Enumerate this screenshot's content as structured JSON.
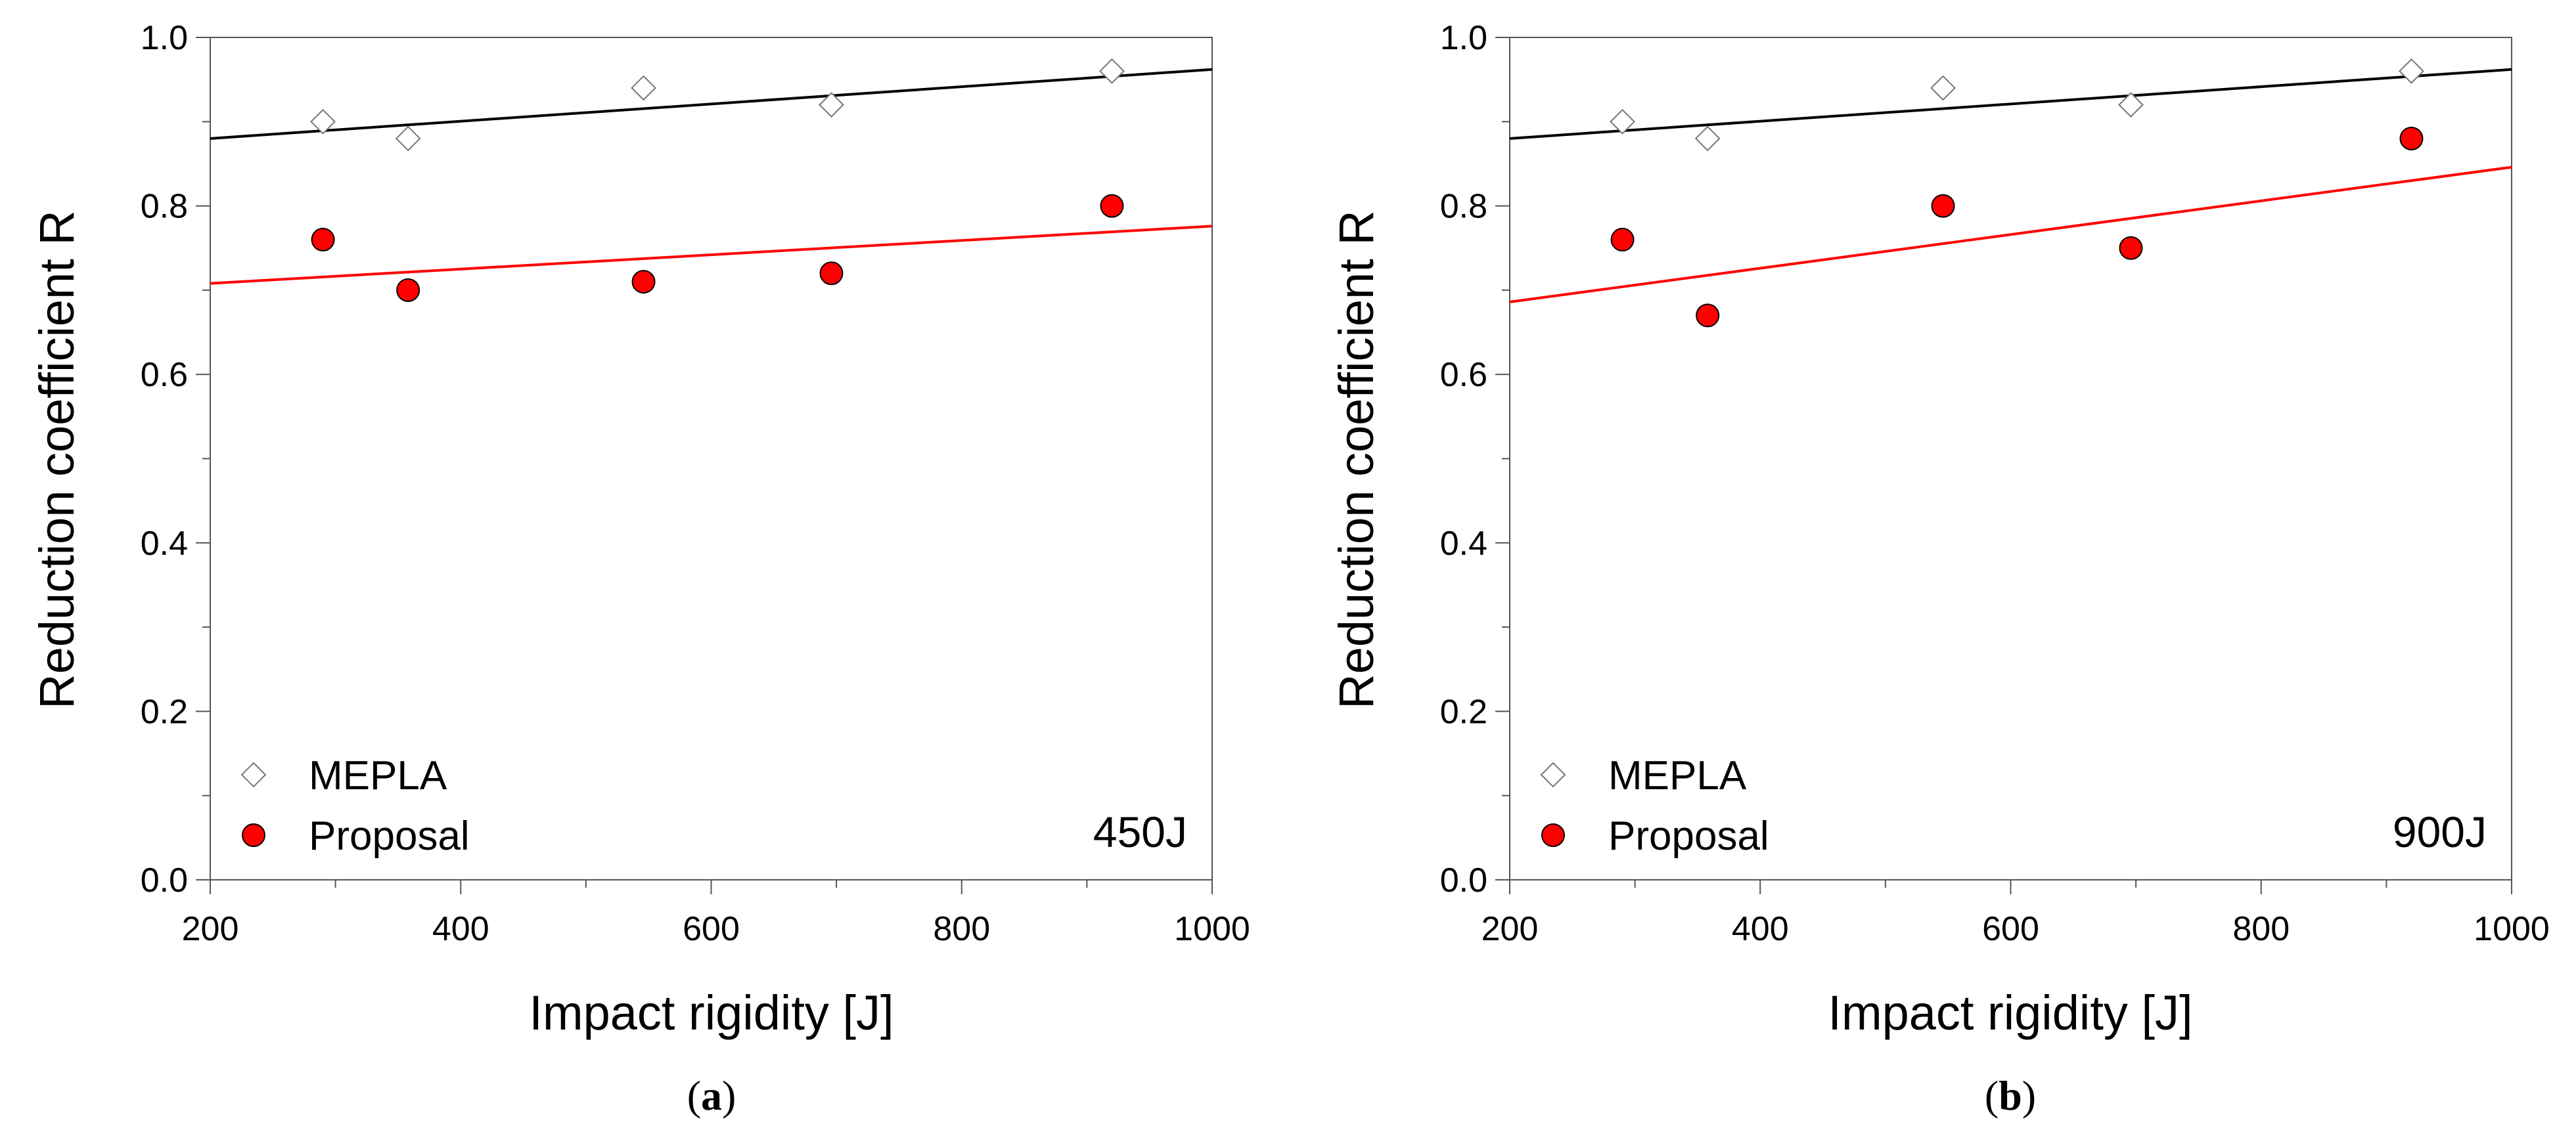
{
  "chart_data": [
    {
      "type": "scatter",
      "caption_letter": "a",
      "annotation": "450J",
      "xlabel": "Impact rigidity [J]",
      "ylabel": "Reduction coefficient R",
      "xlim": [
        200,
        1000
      ],
      "ylim": [
        0.0,
        1.0
      ],
      "xticks": [
        "200",
        "400",
        "600",
        "800",
        "1000"
      ],
      "yticks": [
        "0.0",
        "0.2",
        "0.4",
        "0.6",
        "0.8",
        "1.0"
      ],
      "legend_position": "bottom-left",
      "series": [
        {
          "name": "MEPLA",
          "marker": "diamond-open",
          "color": "#000000",
          "x": [
            290,
            358,
            546,
            696,
            920
          ],
          "y": [
            0.9,
            0.88,
            0.94,
            0.92,
            0.96
          ],
          "trendline": {
            "x": [
              200,
              1000
            ],
            "y": [
              0.88,
              0.962
            ]
          }
        },
        {
          "name": "Proposal",
          "marker": "circle-filled",
          "color": "#ff0000",
          "x": [
            290,
            358,
            546,
            696,
            920
          ],
          "y": [
            0.76,
            0.7,
            0.71,
            0.72,
            0.8
          ],
          "trendline": {
            "x": [
              200,
              1000
            ],
            "y": [
              0.708,
              0.776
            ]
          }
        }
      ]
    },
    {
      "type": "scatter",
      "caption_letter": "b",
      "annotation": "900J",
      "xlabel": "Impact rigidity [J]",
      "ylabel": "Reduction coefficient R",
      "xlim": [
        200,
        1000
      ],
      "ylim": [
        0.0,
        1.0
      ],
      "xticks": [
        "200",
        "400",
        "600",
        "800",
        "1000"
      ],
      "yticks": [
        "0.0",
        "0.2",
        "0.4",
        "0.6",
        "0.8",
        "1.0"
      ],
      "legend_position": "bottom-left",
      "series": [
        {
          "name": "MEPLA",
          "marker": "diamond-open",
          "color": "#000000",
          "x": [
            290,
            358,
            546,
            696,
            920
          ],
          "y": [
            0.9,
            0.88,
            0.94,
            0.92,
            0.96
          ],
          "trendline": {
            "x": [
              200,
              1000
            ],
            "y": [
              0.88,
              0.962
            ]
          }
        },
        {
          "name": "Proposal",
          "marker": "circle-filled",
          "color": "#ff0000",
          "x": [
            290,
            358,
            546,
            696,
            920
          ],
          "y": [
            0.76,
            0.67,
            0.8,
            0.75,
            0.88
          ],
          "trendline": {
            "x": [
              200,
              1000
            ],
            "y": [
              0.686,
              0.846
            ]
          }
        }
      ]
    }
  ]
}
